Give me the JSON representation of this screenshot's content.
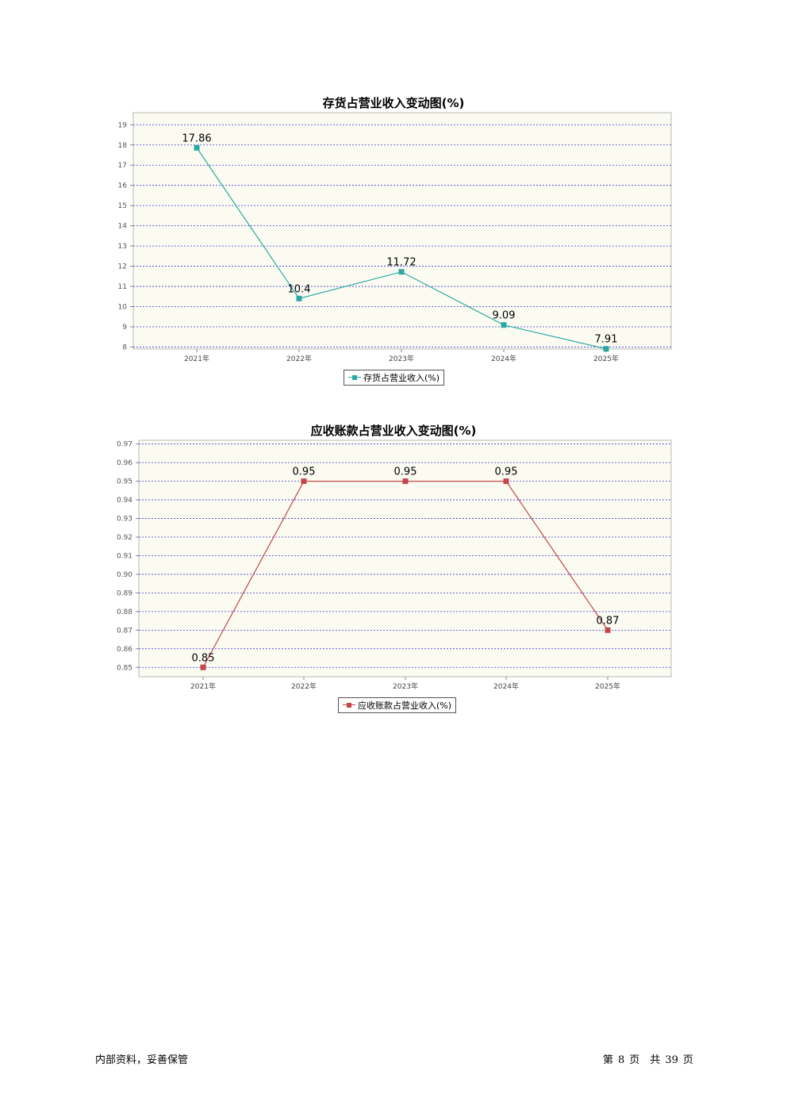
{
  "charts": [
    {
      "id": "chart1",
      "title": "存货占营业收入变动图(%)",
      "legend_label": "存货占营业收入(%)"
    },
    {
      "id": "chart2",
      "title": "应收账款占营业收入变动图(%)",
      "legend_label": "应收账款占营业收入(%)"
    }
  ],
  "chart_data": [
    {
      "type": "line",
      "title": "存货占营业收入变动图(%)",
      "categories": [
        "2021年",
        "2022年",
        "2023年",
        "2024年",
        "2025年"
      ],
      "series": [
        {
          "name": "存货占营业收入(%)",
          "values": [
            17.86,
            10.4,
            11.72,
            9.09,
            7.91
          ],
          "labels": [
            "17.86",
            "10.4",
            "11.72",
            "9.09",
            "7.91"
          ],
          "color": "#2aa9a3"
        }
      ],
      "yticks": [
        8,
        9,
        10,
        11,
        12,
        13,
        14,
        15,
        16,
        17,
        18,
        19
      ],
      "ytick_labels": [
        "8",
        "9",
        "10",
        "11",
        "12",
        "13",
        "14",
        "15",
        "16",
        "17",
        "18",
        "19"
      ],
      "ylim": [
        7.9,
        19.6
      ],
      "grid": true,
      "grid_color": "#3a3ad6",
      "legend_position": "bottom"
    },
    {
      "type": "line",
      "title": "应收账款占营业收入变动图(%)",
      "categories": [
        "2021年",
        "2022年",
        "2023年",
        "2024年",
        "2025年"
      ],
      "series": [
        {
          "name": "应收账款占营业收入(%)",
          "values": [
            0.85,
            0.95,
            0.95,
            0.95,
            0.87
          ],
          "labels": [
            "0.85",
            "0.95",
            "0.95",
            "0.95",
            "0.87"
          ],
          "color": "#c0484a"
        }
      ],
      "yticks": [
        0.85,
        0.86,
        0.87,
        0.88,
        0.89,
        0.9,
        0.91,
        0.92,
        0.93,
        0.94,
        0.95,
        0.96,
        0.97
      ],
      "ytick_labels": [
        "0.85",
        "0.86",
        "0.87",
        "0.88",
        "0.89",
        "0.90",
        "0.91",
        "0.92",
        "0.93",
        "0.94",
        "0.95",
        "0.96",
        "0.97"
      ],
      "ylim": [
        0.845,
        0.972
      ],
      "grid": true,
      "grid_color": "#3a3ad6",
      "legend_position": "bottom"
    }
  ],
  "footer": {
    "left": "内部资料，妥善保管",
    "page_prefix": "第",
    "page_num": "8",
    "page_mid": "页　共",
    "page_total": "39",
    "page_suffix": "页"
  }
}
